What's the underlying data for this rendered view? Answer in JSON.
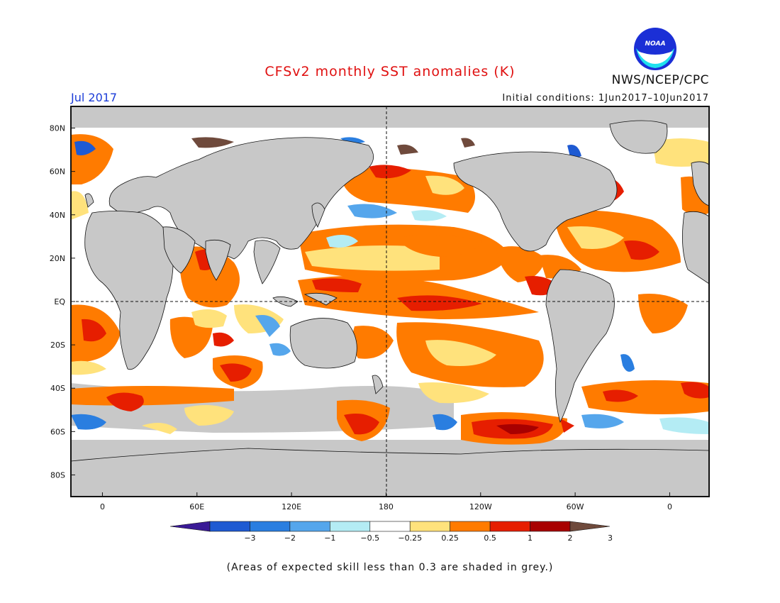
{
  "title": "CFSv2 monthly SST anomalies (K)",
  "valid_month": "Jul 2017",
  "initial_conditions": "Initial conditions: 1Jun2017–10Jun2017",
  "agency": "NWS/NCEP/CPC",
  "logo_text": "NOAA",
  "footnote": "(Areas of expected skill less than 0.3 are shaded in grey.)",
  "map": {
    "lat_labels": [
      "80N",
      "60N",
      "40N",
      "20N",
      "EQ",
      "20S",
      "40S",
      "60S",
      "80S"
    ],
    "lat_values": [
      80,
      60,
      40,
      20,
      0,
      -20,
      -40,
      -60,
      -80
    ],
    "lon_labels": [
      "0",
      "60E",
      "120E",
      "180",
      "120W",
      "60W",
      "0"
    ],
    "lon_values": [
      0,
      60,
      120,
      180,
      240,
      300,
      360
    ],
    "lon_range": [
      -20,
      385
    ],
    "lat_range": [
      -90,
      90
    ],
    "reference_lines": [
      "Equator (dashed)",
      "180° meridian (dashed)"
    ],
    "land_color": "#c8c8c8",
    "skill_mask_color": "#c8c8c8"
  },
  "colorbar": {
    "labels": [
      "−3",
      "−2",
      "−1",
      "−0.5",
      "−0.25",
      "0.25",
      "0.5",
      "1",
      "2",
      "3"
    ],
    "colors": [
      "#3a1a96",
      "#1e5ad2",
      "#2a7ee0",
      "#55a6ec",
      "#b4ecf4",
      "#ffffff",
      "#ffe27c",
      "#ff7b00",
      "#e61e00",
      "#a80000",
      "#6f4a3c"
    ]
  },
  "chart_data": {
    "type": "heatmap",
    "variable": "SST anomaly (K)",
    "regions": [
      {
        "region": "Equatorial central-east Pacific",
        "anomaly_bin": "1 to 2"
      },
      {
        "region": "North Pacific ~20-35N",
        "anomaly_bin": "0.5 to 1"
      },
      {
        "region": "North Pacific ~40N band",
        "anomaly_bin": "-0.5 to 0.25"
      },
      {
        "region": "Gulf of Alaska / Bering Sea",
        "anomaly_bin": "0.5 to 1"
      },
      {
        "region": "North Indian Ocean / Arabian Sea",
        "anomaly_bin": "0.5 to 1"
      },
      {
        "region": "South Pacific ~20-40S",
        "anomaly_bin": "0.5 to 1"
      },
      {
        "region": "Southern Ocean south of South America ~55-65S",
        "anomaly_bin": "1 to 3"
      },
      {
        "region": "South Atlantic ~45S",
        "anomaly_bin": "0.5 to 2"
      },
      {
        "region": "Equatorial Atlantic",
        "anomaly_bin": "0.25 to 1"
      },
      {
        "region": "Maritime Continent",
        "anomaly_bin": "-0.5 to 0.25"
      }
    ]
  }
}
